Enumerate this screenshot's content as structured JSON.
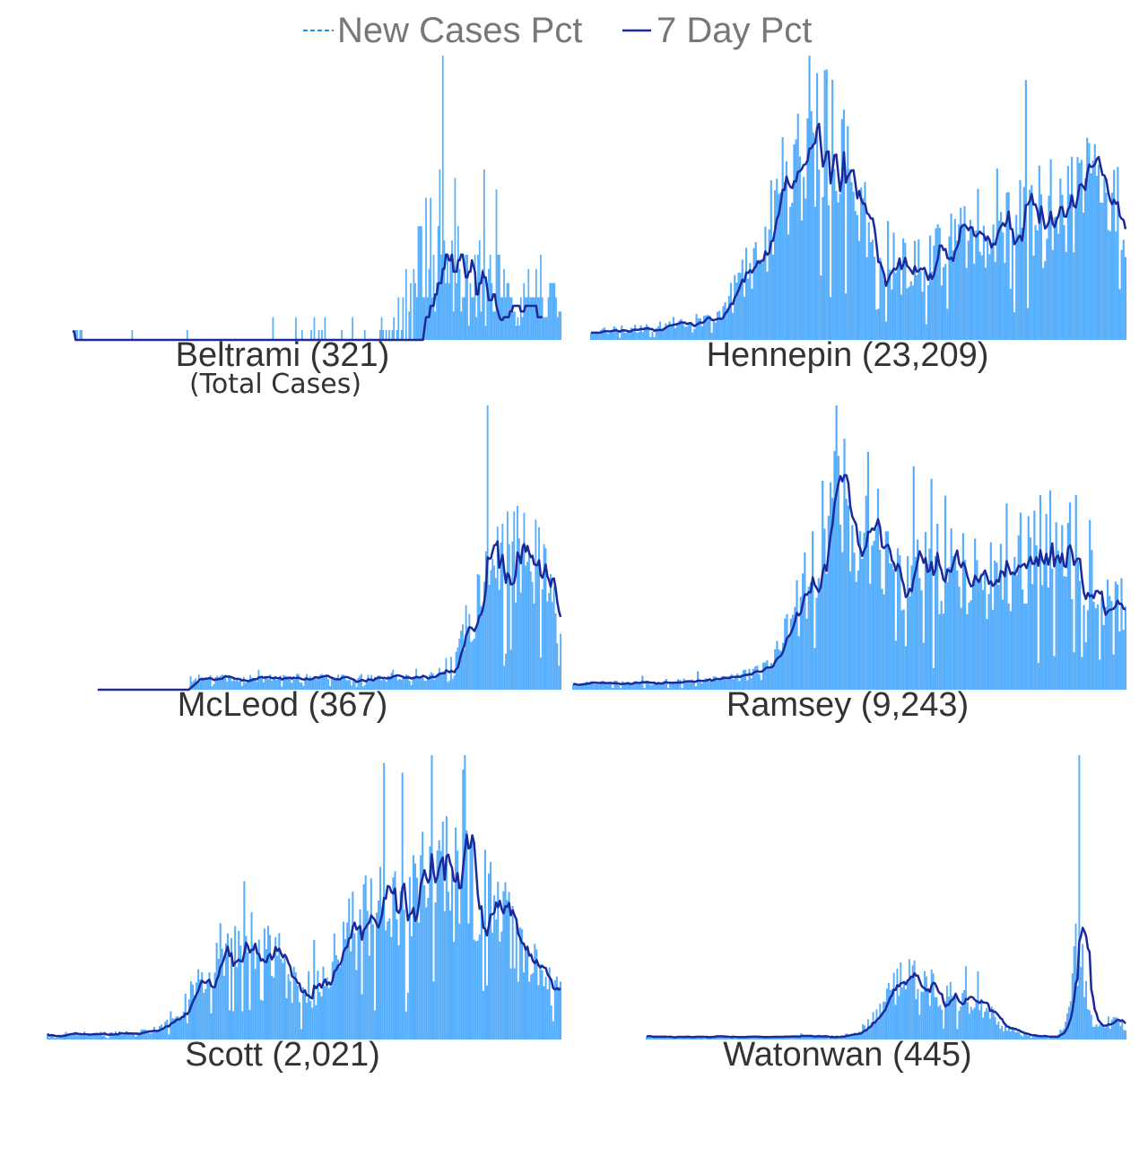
{
  "colors": {
    "bars": "#56aefc",
    "line": "#1a2a9a",
    "legend_text": "#777777",
    "title_text": "#333333"
  },
  "chart_data": {
    "type": "bar",
    "legend": {
      "placement": "top",
      "entries": [
        {
          "label": "New Cases Pct",
          "style": "dashed",
          "color": "#2a8fd8"
        },
        {
          "label": "7 Day Pct",
          "style": "solid",
          "color": "#1a2a9a"
        }
      ]
    },
    "grid": false,
    "axes_visible": false,
    "panels": [
      {
        "name": "Beltrami",
        "title": "Beltrami (321)",
        "subtitle": "(Total Cases)",
        "ylim": [
          0,
          1
        ],
        "day_offset": 5,
        "bars": [
          0,
          0,
          0.035,
          0.035,
          0,
          0.035,
          0.035,
          0,
          0,
          0,
          0,
          0,
          0,
          0,
          0,
          0,
          0,
          0,
          0,
          0,
          0,
          0,
          0,
          0,
          0,
          0,
          0,
          0,
          0,
          0,
          0,
          0,
          0,
          0,
          0,
          0,
          0,
          0,
          0,
          0.035,
          0,
          0,
          0,
          0,
          0,
          0,
          0,
          0,
          0,
          0,
          0,
          0,
          0,
          0,
          0,
          0,
          0,
          0,
          0,
          0,
          0,
          0,
          0,
          0,
          0,
          0,
          0,
          0,
          0,
          0,
          0,
          0,
          0,
          0,
          0,
          0.035,
          0,
          0,
          0,
          0,
          0,
          0,
          0,
          0,
          0,
          0,
          0,
          0,
          0,
          0,
          0,
          0,
          0,
          0,
          0,
          0,
          0,
          0,
          0,
          0,
          0,
          0,
          0,
          0,
          0,
          0,
          0,
          0,
          0,
          0,
          0,
          0,
          0,
          0,
          0,
          0,
          0,
          0,
          0,
          0,
          0,
          0,
          0,
          0,
          0,
          0,
          0,
          0,
          0,
          0,
          0,
          0.08,
          0,
          0,
          0,
          0,
          0,
          0,
          0,
          0,
          0,
          0,
          0,
          0,
          0,
          0,
          0.08,
          0,
          0,
          0,
          0.035,
          0,
          0,
          0,
          0,
          0,
          0.035,
          0,
          0.08,
          0,
          0,
          0.035,
          0,
          0.035,
          0,
          0.08,
          0,
          0,
          0,
          0,
          0,
          0,
          0,
          0,
          0,
          0,
          0.035,
          0,
          0,
          0,
          0,
          0,
          0,
          0.08,
          0,
          0,
          0,
          0,
          0,
          0,
          0,
          0.035,
          0,
          0,
          0,
          0,
          0,
          0,
          0,
          0,
          0,
          0.035,
          0.08,
          0.035,
          0,
          0.035,
          0,
          0.035,
          0,
          0.035,
          0.08,
          0,
          0.035,
          0.15,
          0,
          0.035,
          0.15,
          0,
          0.25,
          0,
          0.1,
          0.2,
          0,
          0.25,
          0.2,
          0.15,
          0.4,
          0.4,
          0.4,
          0.15,
          0.15,
          0.5,
          0.15,
          0.25,
          0.5,
          0.15,
          0.3,
          0.1,
          0.2,
          0.4,
          0.6,
          0.3,
          1,
          0.35,
          0.2,
          0.3,
          0.2,
          0.3,
          0.35,
          0.1,
          0.57,
          0.2,
          0.4,
          0.25,
          0.1,
          0.15,
          0.15,
          0.3,
          0.3,
          0.05,
          0.2,
          0.15,
          0.15,
          0.3,
          0.08,
          0.3,
          0.35,
          0.1,
          0.25,
          0.6,
          0.05,
          0.2,
          0.25,
          0.3,
          0.2,
          0.1,
          0.1,
          0.53,
          0.3,
          0.3,
          0.15,
          0.15,
          0.25,
          0.15,
          0.2,
          0.2,
          0.15,
          0.15,
          0.1,
          0.1,
          0.05,
          0.08,
          0.05,
          0.15,
          0.08,
          0.2,
          0.15,
          0.15,
          0.25,
          0.15,
          0.15,
          0.15,
          0.15,
          0.25,
          0.15,
          0.15,
          0.3,
          0.15,
          0.08,
          0.08,
          0.08,
          0.15,
          0.2,
          0.2,
          0.2,
          0.2,
          0.15,
          0.08,
          0.1,
          0.1
        ],
        "line": [
          0.03,
          0.03,
          0,
          0,
          0,
          0,
          0,
          0,
          0,
          0,
          0,
          0,
          0,
          0,
          0,
          0,
          0,
          0,
          0,
          0,
          0,
          0,
          0,
          0,
          0,
          0,
          0,
          0,
          0,
          0,
          0,
          0,
          0,
          0,
          0,
          0,
          0,
          0,
          0,
          0,
          0,
          0,
          0,
          0,
          0,
          0,
          0,
          0,
          0,
          0,
          0,
          0,
          0,
          0,
          0,
          0,
          0,
          0,
          0,
          0,
          0,
          0,
          0,
          0,
          0,
          0,
          0,
          0,
          0,
          0,
          0,
          0,
          0,
          0,
          0,
          0,
          0,
          0,
          0,
          0,
          0,
          0,
          0,
          0,
          0,
          0,
          0,
          0,
          0,
          0,
          0,
          0,
          0,
          0,
          0,
          0,
          0,
          0,
          0,
          0,
          0,
          0,
          0,
          0,
          0,
          0,
          0,
          0,
          0,
          0,
          0,
          0,
          0,
          0,
          0,
          0,
          0,
          0,
          0,
          0,
          0,
          0,
          0,
          0,
          0,
          0,
          0,
          0,
          0,
          0,
          0,
          0,
          0,
          0,
          0,
          0,
          0,
          0,
          0,
          0,
          0,
          0,
          0,
          0,
          0,
          0,
          0,
          0,
          0,
          0,
          0,
          0,
          0,
          0,
          0,
          0,
          0,
          0,
          0,
          0,
          0,
          0,
          0,
          0,
          0,
          0,
          0,
          0,
          0,
          0,
          0,
          0,
          0,
          0,
          0,
          0,
          0,
          0,
          0,
          0,
          0,
          0,
          0,
          0,
          0,
          0,
          0,
          0,
          0,
          0,
          0,
          0,
          0,
          0,
          0,
          0,
          0,
          0,
          0,
          0,
          0,
          0,
          0,
          0,
          0,
          0,
          0,
          0,
          0,
          0,
          0,
          0,
          0,
          0,
          0,
          0,
          0,
          0,
          0,
          0,
          0,
          0,
          0,
          0,
          0,
          0,
          0,
          0,
          0,
          0,
          0.04,
          0.08,
          0.08,
          0.08,
          0.12,
          0.12,
          0.12,
          0.16,
          0.16,
          0.2,
          0.2,
          0.2,
          0.25,
          0.25,
          0.3,
          0.3,
          0.28,
          0.28,
          0.3,
          0.24,
          0.24,
          0.24,
          0.28,
          0.28,
          0.3,
          0.3,
          0.26,
          0.22,
          0.22,
          0.24,
          0.24,
          0.28,
          0.26,
          0.24,
          0.16,
          0.16,
          0.2,
          0.2,
          0.24,
          0.22,
          0.22,
          0.18,
          0.14,
          0.14,
          0.14,
          0.16,
          0.16,
          0.12,
          0.1,
          0.08,
          0.07,
          0.07,
          0.08,
          0.08,
          0.08,
          0.08,
          0.1,
          0.1,
          0.12,
          0.12,
          0.12,
          0.12,
          0.12,
          0.1,
          0.1,
          0.1,
          0.12,
          0.12,
          0.12,
          0.12,
          0.12,
          0.12,
          0.12,
          0.12,
          0.08,
          0.08,
          0.08,
          0.08
        ]
      },
      {
        "name": "Hennepin",
        "title": "Hennepin (23,209)"
      },
      {
        "name": "McLeod",
        "title": "McLeod (367)"
      },
      {
        "name": "Ramsey",
        "title": "Ramsey (9,243)"
      },
      {
        "name": "Scott",
        "title": "Scott (2,021)"
      },
      {
        "name": "Watonwan",
        "title": "Watonwan (445)"
      }
    ]
  }
}
